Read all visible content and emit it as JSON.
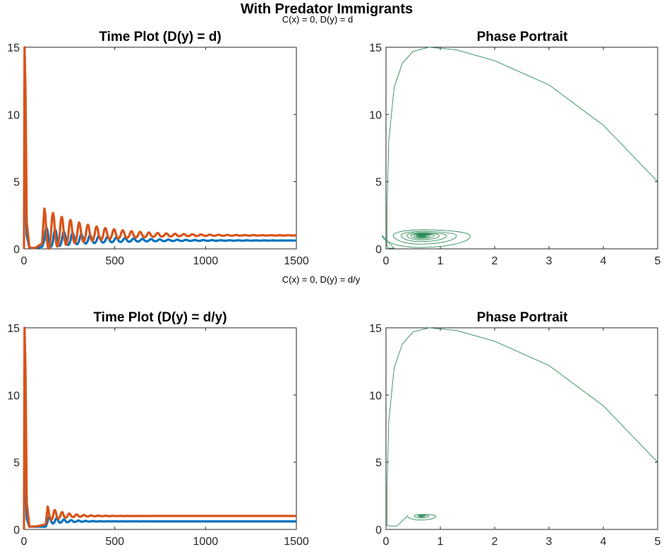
{
  "figure": {
    "suptitle": "With Predator Immigrants",
    "row_notes": [
      "C(x) = 0, D(y) = d",
      "C(x) = 0, D(y) = d/y"
    ]
  },
  "colors": {
    "prey": "#0072BD",
    "predator": "#D95319",
    "phase": "#2E8B57"
  },
  "chart_data": [
    {
      "type": "line",
      "title": "Time Plot (D(y) = d)",
      "xlabel": "",
      "ylabel": "",
      "xlim": [
        0,
        1500
      ],
      "ylim": [
        0,
        15
      ],
      "xticks": [
        0,
        500,
        1000,
        1500
      ],
      "yticks": [
        0,
        5,
        10,
        15
      ],
      "grid": false,
      "series": [
        {
          "role": "prey",
          "x": [
            0,
            5,
            15,
            30,
            60,
            100,
            120,
            140,
            175,
            230,
            300,
            400,
            600,
            1500
          ],
          "y": [
            5,
            4.8,
            1.0,
            0.05,
            0.05,
            0.15,
            1.6,
            0.2,
            1.0,
            0.4,
            0.75,
            0.5,
            0.62,
            0.6
          ]
        },
        {
          "role": "predator",
          "x": [
            0,
            3,
            8,
            15,
            30,
            60,
            100,
            112,
            125,
            150,
            160,
            175,
            200,
            210,
            230,
            300,
            400,
            600,
            1500
          ],
          "y": [
            0,
            15,
            12,
            2.0,
            0.1,
            0.05,
            0.4,
            3.0,
            0.5,
            0.5,
            2.3,
            0.5,
            0.5,
            1.9,
            0.6,
            1.3,
            1.1,
            1.0,
            1.0
          ]
        }
      ],
      "oscillation": {
        "start": 112,
        "period": 48,
        "prey_mean": 0.62,
        "pred_mean": 1.0,
        "amplitude_decay": 260
      }
    },
    {
      "type": "line",
      "title": "Phase Portrait",
      "xlabel": "",
      "ylabel": "",
      "xlim": [
        0,
        5
      ],
      "ylim": [
        0,
        15
      ],
      "xticks": [
        0,
        1,
        2,
        3,
        4,
        5
      ],
      "yticks": [
        0,
        5,
        10,
        15
      ],
      "grid": false,
      "series": [
        {
          "role": "orbit",
          "x": [
            5,
            4,
            3,
            2,
            1.3,
            0.8,
            0.5,
            0.3,
            0.15,
            0.05,
            0.02,
            0.02,
            0.05,
            0.15
          ],
          "y": [
            5,
            9.2,
            12.2,
            14.0,
            14.8,
            15.0,
            14.7,
            13.8,
            12.0,
            8.0,
            3.0,
            0.2,
            0.05,
            0.05
          ]
        }
      ],
      "spiral": {
        "center_x": 0.65,
        "center_y": 1.0,
        "rx0": 0.85,
        "ry0": 1.95,
        "turns": 12
      }
    },
    {
      "type": "line",
      "title": "Time Plot (D(y) = d/y)",
      "xlabel": "",
      "ylabel": "",
      "xlim": [
        0,
        1500
      ],
      "ylim": [
        0,
        15
      ],
      "xticks": [
        0,
        500,
        1000,
        1500
      ],
      "yticks": [
        0,
        5,
        10,
        15
      ],
      "grid": false,
      "series": [
        {
          "role": "prey",
          "x": [
            0,
            5,
            15,
            30,
            80,
            120,
            140,
            170,
            250,
            1500
          ],
          "y": [
            5,
            4.8,
            0.8,
            0.2,
            0.2,
            0.2,
            1.0,
            0.4,
            0.6,
            0.6
          ]
        },
        {
          "role": "predator",
          "x": [
            0,
            3,
            8,
            15,
            30,
            80,
            120,
            130,
            150,
            175,
            250,
            1500
          ],
          "y": [
            0,
            15,
            12,
            2.0,
            0.2,
            0.25,
            0.4,
            1.7,
            0.6,
            1.3,
            1.0,
            1.0
          ]
        }
      ],
      "oscillation": {
        "start": 130,
        "period": 40,
        "prey_mean": 0.6,
        "pred_mean": 1.0,
        "amplitude_decay": 90
      }
    },
    {
      "type": "line",
      "title": "Phase Portrait",
      "xlabel": "",
      "ylabel": "",
      "xlim": [
        0,
        5
      ],
      "ylim": [
        0,
        15
      ],
      "xticks": [
        0,
        1,
        2,
        3,
        4,
        5
      ],
      "yticks": [
        0,
        5,
        10,
        15
      ],
      "grid": false,
      "series": [
        {
          "role": "orbit",
          "x": [
            5,
            4,
            3,
            2,
            1.3,
            0.8,
            0.5,
            0.3,
            0.15,
            0.05,
            0.02,
            0.02,
            0.1,
            0.2
          ],
          "y": [
            5,
            9.2,
            12.2,
            14.0,
            14.8,
            15.0,
            14.7,
            13.8,
            12.0,
            8.0,
            3.0,
            0.3,
            0.25,
            0.25
          ]
        }
      ],
      "spiral": {
        "center_x": 0.65,
        "center_y": 1.0,
        "rx0": 0.3,
        "ry0": 0.7,
        "turns": 6
      }
    }
  ]
}
